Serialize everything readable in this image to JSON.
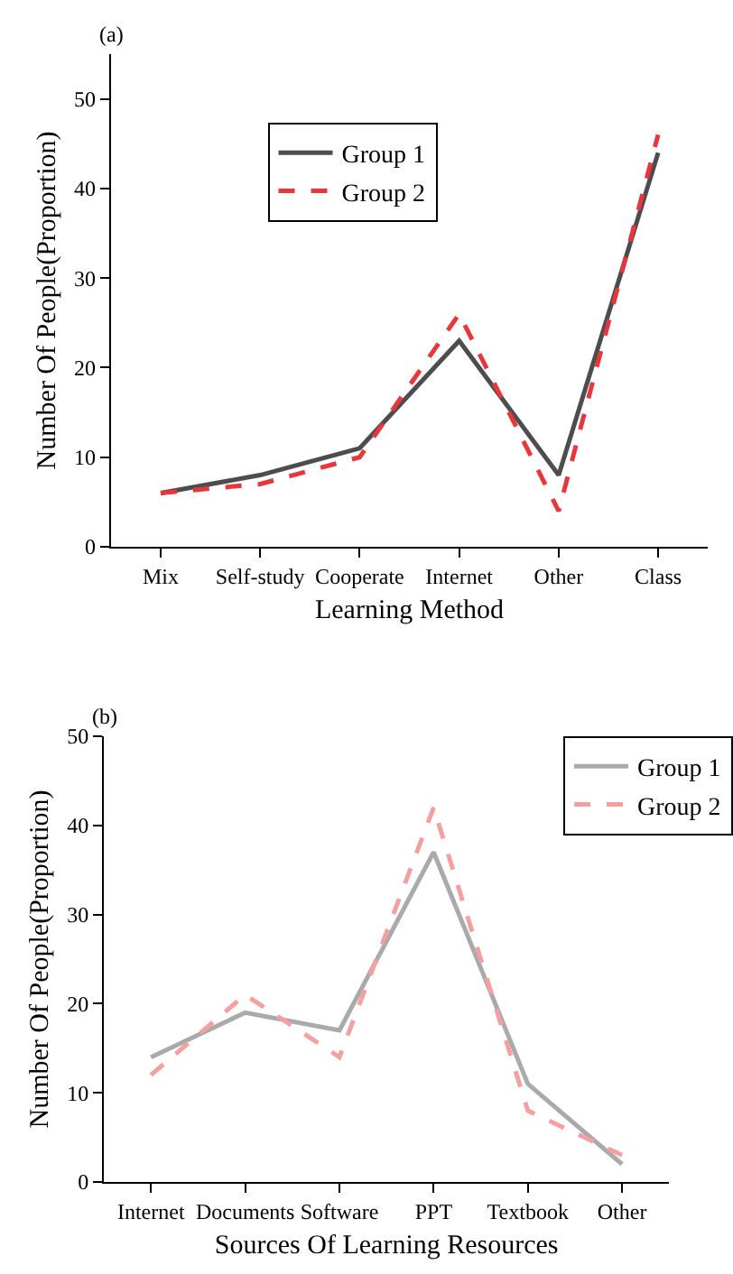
{
  "chart_data": [
    {
      "type": "line",
      "title": "(a)",
      "xlabel": "Learning Method",
      "ylabel": "Number Of People(Proportion)",
      "categories": [
        "Mix",
        "Self-study",
        "Cooperate",
        "Internet",
        "Other",
        "Class"
      ],
      "series": [
        {
          "name": "Group 1",
          "color": "#4d4d4d",
          "line_style": "solid",
          "values": [
            6,
            8,
            11,
            23,
            8,
            44
          ]
        },
        {
          "name": "Group 2",
          "color": "#e8373c",
          "line_style": "dashed",
          "values": [
            6,
            7,
            10,
            26,
            4,
            46
          ]
        }
      ],
      "ylim": [
        0,
        55
      ],
      "yticks": [
        0,
        10,
        20,
        30,
        40,
        50
      ],
      "legend": "top left",
      "marker": "none"
    },
    {
      "type": "line",
      "title": "(b)",
      "xlabel": "Sources Of Learning Resources",
      "ylabel": "Number Of People(Proportion)",
      "categories": [
        "Internet",
        "Documents",
        "Software",
        "PPT",
        "Textbook",
        "Other"
      ],
      "series": [
        {
          "name": "Group 1",
          "color": "#aaaaaa",
          "line_style": "solid",
          "values": [
            14,
            19,
            17,
            37,
            11,
            2
          ]
        },
        {
          "name": "Group 2",
          "color": "#f4a0a0",
          "line_style": "dashed",
          "values": [
            12,
            21,
            14,
            42,
            8,
            3
          ]
        }
      ],
      "ylim": [
        0,
        50
      ],
      "yticks": [
        0,
        10,
        20,
        30,
        40,
        50
      ],
      "legend": "top right",
      "marker": "none"
    }
  ]
}
